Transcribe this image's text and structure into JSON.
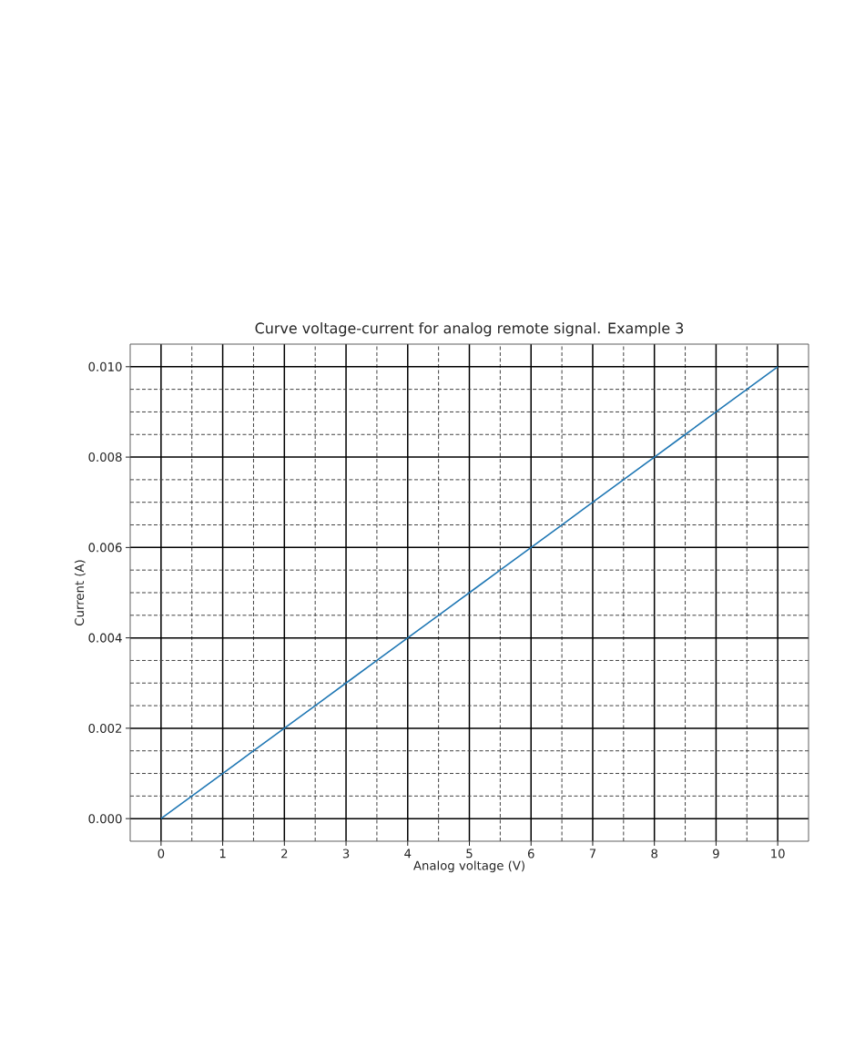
{
  "chart_data": {
    "type": "line",
    "title": "Curve voltage-current for analog remote signal. Example 3",
    "xlabel": "Analog voltage (V)",
    "ylabel": "Current (A)",
    "x": [
      0,
      0.5,
      1,
      1.5,
      2,
      2.5,
      3,
      3.5,
      4,
      4.5,
      5,
      5.5,
      6,
      6.5,
      7,
      7.5,
      8,
      8.5,
      9,
      9.5,
      10
    ],
    "values": [
      0,
      0.0005,
      0.001,
      0.0015,
      0.002,
      0.0025,
      0.003,
      0.0035,
      0.004,
      0.0045,
      0.005,
      0.0055,
      0.006,
      0.0065,
      0.007,
      0.0075,
      0.008,
      0.0085,
      0.009,
      0.0095,
      0.01
    ],
    "color": "#1f77b4",
    "line_style": "solid",
    "xlim": [
      -0.5,
      10.5
    ],
    "ylim": [
      -0.0005,
      0.0105
    ],
    "xticks": [
      0,
      {
        "value": 0.5,
        "label": null
      },
      1,
      {
        "value": 1.5,
        "label": null
      },
      2,
      {
        "value": 2.5,
        "label": null
      },
      3,
      {
        "value": 3.5,
        "label": null
      },
      4,
      {
        "value": 4.5,
        "label": null
      },
      5,
      {
        "value": 5.5,
        "label": null
      },
      6,
      {
        "value": 6.5,
        "label": null
      },
      7,
      {
        "value": 7.5,
        "label": null
      },
      8,
      {
        "value": 8.5,
        "label": null
      },
      9,
      {
        "value": 9.5,
        "label": null
      },
      10
    ],
    "yticks": [
      {
        "value": 0,
        "label": "0.000"
      },
      {
        "value": 0.0005,
        "label": null
      },
      {
        "value": 0.001,
        "label": null
      },
      {
        "value": 0.0015,
        "label": null
      },
      {
        "value": 0.002,
        "label": "0.002"
      },
      {
        "value": 0.0025,
        "label": null
      },
      {
        "value": 0.003,
        "label": null
      },
      {
        "value": 0.0035,
        "label": null
      },
      {
        "value": 0.004,
        "label": "0.004"
      },
      {
        "value": 0.0045,
        "label": null
      },
      {
        "value": 0.005,
        "label": null
      },
      {
        "value": 0.0055,
        "label": null
      },
      {
        "value": 0.006,
        "label": "0.006"
      },
      {
        "value": 0.0065,
        "label": null
      },
      {
        "value": 0.007,
        "label": null
      },
      {
        "value": 0.0075,
        "label": null
      },
      {
        "value": 0.008,
        "label": "0.008"
      },
      {
        "value": 0.0085,
        "label": null
      },
      {
        "value": 0.009,
        "label": null
      },
      {
        "value": 0.0095,
        "label": null
      },
      {
        "value": 0.01,
        "label": "0.010"
      }
    ],
    "grid": true
  }
}
